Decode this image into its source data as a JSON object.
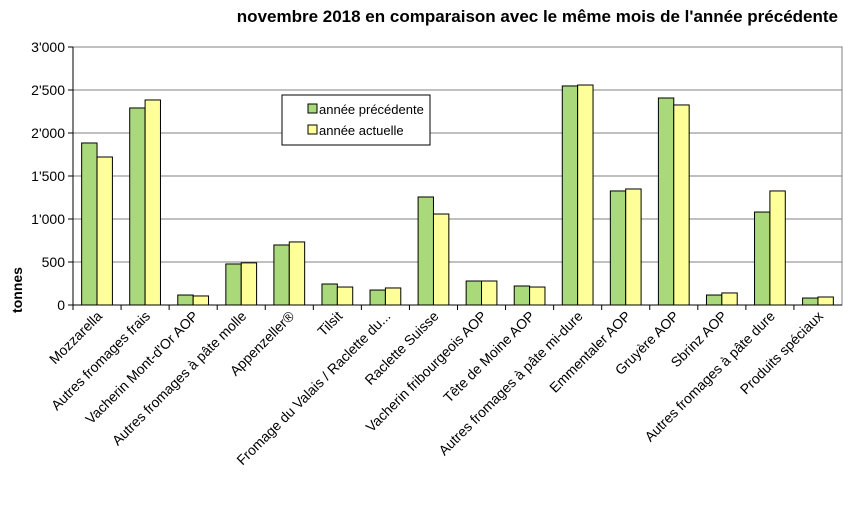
{
  "chart_data": {
    "type": "bar",
    "title": "novembre 2018 en comparaison avec le même mois de l'année précédente",
    "y_label": "tonnes",
    "categories": [
      "Mozzarella",
      "Autres fromages frais",
      "Vacherin Mont-d'Or AOP",
      "Autres fromages à pâte molle",
      "Appenzeller®",
      "Tilsit",
      "Fromage du Valais / Raclette du...",
      "Raclette Suisse",
      "Vacherin fribourgeois AOP",
      "Tête de Moine AOP",
      "Autres fromages à pâte mi-dure",
      "Emmentaler AOP",
      "Gruyère AOP",
      "Sbrinz AOP",
      "Autres fromages à pâte dure",
      "Produits spéciaux"
    ],
    "series": [
      {
        "name": "année précédente",
        "color": "#a9d97a",
        "values": [
          1884,
          2291,
          116,
          477,
          698,
          244,
          174,
          1256,
          279,
          221,
          2547,
          1326,
          2407,
          116,
          1081,
          81
        ]
      },
      {
        "name": "année actuelle",
        "color": "#ffff99",
        "values": [
          1721,
          2384,
          105,
          490,
          733,
          209,
          198,
          1058,
          279,
          209,
          2558,
          1349,
          2326,
          140,
          1326,
          93
        ]
      }
    ],
    "ylim": [
      0,
      3000
    ],
    "yticks": [
      0,
      500,
      {
        "value": 1000,
        "label": "1'000"
      },
      {
        "value": 1500,
        "label": "1'500"
      },
      {
        "value": 2000,
        "label": "2'000"
      },
      {
        "value": 2500,
        "label": "2'500"
      },
      {
        "value": 3000,
        "label": "3'000"
      }
    ],
    "grid": true,
    "legend": "top"
  }
}
